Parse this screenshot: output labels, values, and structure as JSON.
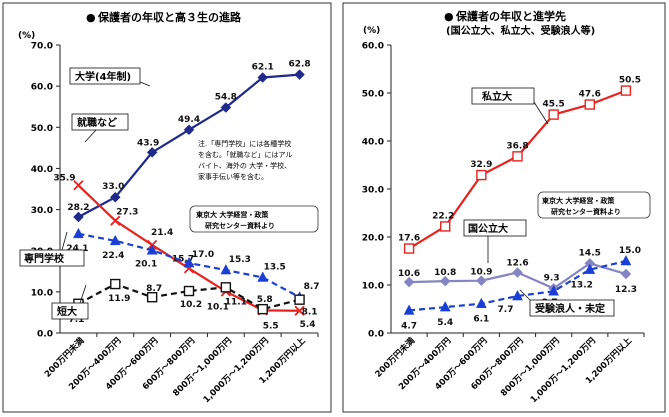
{
  "charts": [
    {
      "bullet": "●",
      "title_lines": [
        "保護者の年収と高３生の進路"
      ],
      "ylabel": "(%)",
      "ylim": [
        0,
        70
      ],
      "ytick_step": 10,
      "ytick_labels": [
        "0.0",
        "10.0",
        "20.0",
        "30.0",
        "40.0",
        "50.0",
        "60.0",
        "70.0"
      ],
      "categories": [
        "200万円未満",
        "200万～400万円",
        "400万～600万円",
        "600万～800万円",
        "800万～1,000万円",
        "1,000万～1,200万円",
        "1,200万円以上"
      ],
      "note_lines": [
        "注.「専門学校」には各種学校",
        "を含む。「就職など」にはアル",
        "バイト、海外の 大学・学校、",
        "家事手伝い等を含む。"
      ],
      "source_lines": [
        "東京大 大学経営・政策",
        "研究センター資料より"
      ],
      "series": [
        {
          "name": "大学(4年制)",
          "values": [
            28.2,
            33.0,
            43.9,
            49.4,
            54.8,
            62.1,
            62.8
          ],
          "color": "#1f2a8c",
          "dash": "",
          "marker": "diamond",
          "labels": [
            "28.2",
            "33.0",
            "43.9",
            "49.4",
            "54.8",
            "62.1",
            "62.8"
          ]
        },
        {
          "name": "就職など",
          "values": [
            35.9,
            27.3,
            21.4,
            15.7,
            10.1,
            5.5,
            5.4
          ],
          "color": "#e8231f",
          "dash": "",
          "marker": "x",
          "labels": [
            "35.9",
            "27.3",
            "21.4",
            "15.7",
            "10.1",
            "5.5",
            "5.4"
          ]
        },
        {
          "name": "専門学校",
          "values": [
            24.1,
            22.4,
            20.1,
            17.0,
            15.3,
            13.5,
            8.7
          ],
          "color": "#1a3fd6",
          "dash": "6,4",
          "marker": "triangle",
          "labels": [
            "24.1",
            "22.4",
            "20.1",
            "17.0",
            "15.3",
            "13.5",
            "8.7"
          ]
        },
        {
          "name": "短大",
          "values": [
            7.1,
            11.9,
            8.7,
            10.2,
            11.1,
            5.8,
            8.1
          ],
          "color": "#111111",
          "dash": "6,4",
          "marker": "square",
          "labels": [
            "7.1",
            "11.9",
            "8.7",
            "10.2",
            "11.1",
            "5.8",
            "8.1"
          ]
        }
      ]
    },
    {
      "bullet": "●",
      "title_lines": [
        "保護者の年収と進学先",
        "(国公立大、私立大、受験浪人等)"
      ],
      "ylabel": "(%)",
      "ylim": [
        0,
        60
      ],
      "ytick_step": 10,
      "ytick_labels": [
        "0.0",
        "10.0",
        "20.0",
        "30.0",
        "40.0",
        "50.0",
        "60.0"
      ],
      "categories": [
        "200万円未満",
        "200万～400万円",
        "400万～600万円",
        "600万～800万円",
        "800万～1,000万円",
        "1,000万～1,200万円",
        "1,200万円以上"
      ],
      "note_lines": [],
      "source_lines": [
        "東京大 大学経営・政策",
        "研究センター資料より"
      ],
      "series": [
        {
          "name": "私立大",
          "values": [
            17.6,
            22.2,
            32.9,
            36.8,
            45.5,
            47.6,
            50.5
          ],
          "color": "#e8231f",
          "dash": "",
          "marker": "square",
          "labels": [
            "17.6",
            "22.2",
            "32.9",
            "36.8",
            "45.5",
            "47.6",
            "50.5"
          ]
        },
        {
          "name": "国公立大",
          "values": [
            10.6,
            10.8,
            10.9,
            12.6,
            9.3,
            14.5,
            12.3
          ],
          "color": "#8585c4",
          "dash": "",
          "marker": "diamond",
          "labels": [
            "10.6",
            "10.8",
            "10.9",
            "12.6",
            "9.3",
            "14.5",
            "12.3"
          ]
        },
        {
          "name": "受験浪人・未定",
          "values": [
            4.7,
            5.4,
            6.1,
            7.7,
            8.7,
            13.2,
            15.0
          ],
          "color": "#1a3fd6",
          "dash": "6,4",
          "marker": "triangle",
          "labels": [
            "4.7",
            "5.4",
            "6.1",
            "7.7",
            "8.7",
            "13.2",
            "15.0"
          ]
        }
      ]
    }
  ],
  "chart_data": [
    {
      "type": "line",
      "title": "保護者の年収と高３生の進路",
      "xlabel": "",
      "ylabel": "(%)",
      "ylim": [
        0,
        70
      ],
      "grid": false,
      "legend": "inline labels",
      "x": [
        "200万円未満",
        "200万～400万円",
        "400万～600万円",
        "600万～800万円",
        "800万～1,000万円",
        "1,000万～1,200万円",
        "1,200万円以上"
      ],
      "series": [
        {
          "name": "大学(4年制)",
          "values": [
            28.2,
            33.0,
            43.9,
            49.4,
            54.8,
            62.1,
            62.8
          ]
        },
        {
          "name": "就職など",
          "values": [
            35.9,
            27.3,
            21.4,
            15.7,
            10.1,
            5.5,
            5.4
          ]
        },
        {
          "name": "専門学校",
          "values": [
            24.1,
            22.4,
            20.1,
            17.0,
            15.3,
            13.5,
            8.7
          ]
        },
        {
          "name": "短大",
          "values": [
            7.1,
            11.9,
            8.7,
            10.2,
            11.1,
            5.8,
            8.1
          ]
        }
      ]
    },
    {
      "type": "line",
      "title": "保護者の年収と進学先 (国公立大、私立大、受験浪人等)",
      "xlabel": "",
      "ylabel": "(%)",
      "ylim": [
        0,
        60
      ],
      "grid": false,
      "legend": "inline labels",
      "x": [
        "200万円未満",
        "200万～400万円",
        "400万～600万円",
        "600万～800万円",
        "800万～1,000万円",
        "1,000万～1,200万円",
        "1,200万円以上"
      ],
      "series": [
        {
          "name": "私立大",
          "values": [
            17.6,
            22.2,
            32.9,
            36.8,
            45.5,
            47.6,
            50.5
          ]
        },
        {
          "name": "国公立大",
          "values": [
            10.6,
            10.8,
            10.9,
            12.6,
            9.3,
            14.5,
            12.3
          ]
        },
        {
          "name": "受験浪人・未定",
          "values": [
            4.7,
            5.4,
            6.1,
            7.7,
            8.7,
            13.2,
            15.0
          ]
        }
      ]
    }
  ]
}
